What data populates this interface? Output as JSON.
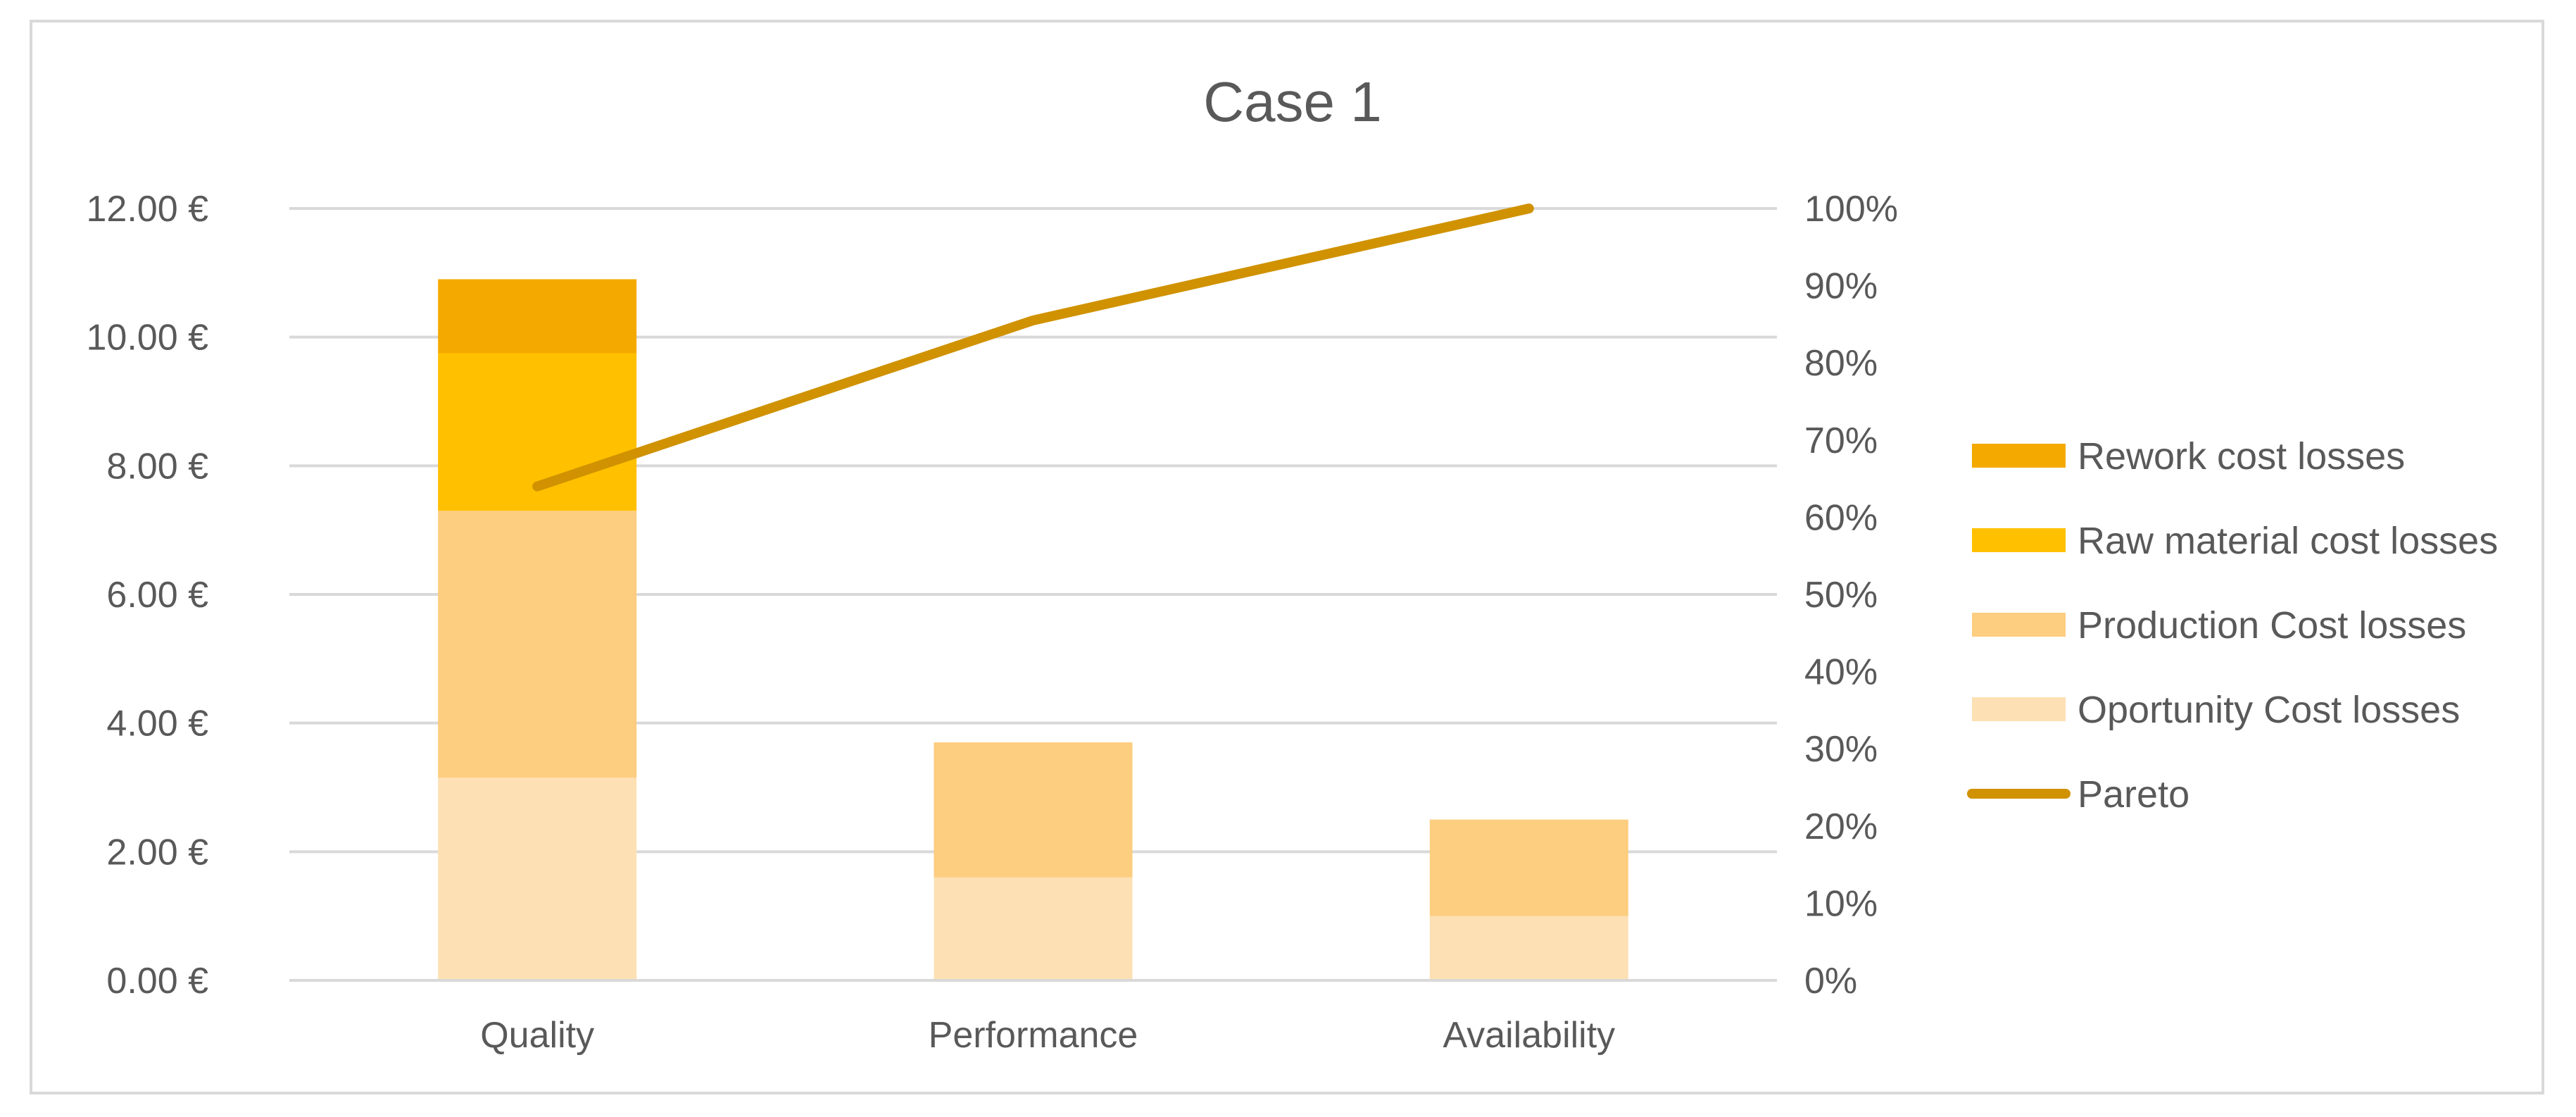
{
  "chart_data": {
    "type": "bar",
    "stacked": true,
    "title": "Case 1",
    "categories": [
      "Quality",
      "Performance",
      "Availability"
    ],
    "series": [
      {
        "name": "Oportunity Cost losses",
        "values": [
          3.15,
          1.6,
          1.0
        ],
        "color": "#fde0b4"
      },
      {
        "name": "Production Cost losses",
        "values": [
          4.15,
          2.1,
          1.5
        ],
        "color": "#fdcd80"
      },
      {
        "name": "Raw material cost losses",
        "values": [
          2.45,
          0,
          0
        ],
        "color": "#ffc000"
      },
      {
        "name": "Rework cost losses",
        "values": [
          1.15,
          0,
          0
        ],
        "color": "#f4a900"
      }
    ],
    "pareto": {
      "name": "Pareto",
      "values": [
        0.64,
        0.855,
        1.0
      ],
      "color": "#d09200"
    },
    "y_left": {
      "ticks": [
        "0.00 €",
        "2.00 €",
        "4.00 €",
        "6.00 €",
        "8.00 €",
        "10.00 €",
        "12.00 €"
      ],
      "ylim": [
        0,
        12
      ]
    },
    "y_right": {
      "ticks": [
        "0%",
        "10%",
        "20%",
        "30%",
        "40%",
        "50%",
        "60%",
        "70%",
        "80%",
        "90%",
        "100%"
      ],
      "ylim": [
        0,
        1
      ]
    },
    "grid": true,
    "legend": {
      "position": "right",
      "order": [
        "Rework cost losses",
        "Raw material cost losses",
        "Production Cost losses",
        "Oportunity Cost losses",
        "Pareto"
      ]
    }
  }
}
